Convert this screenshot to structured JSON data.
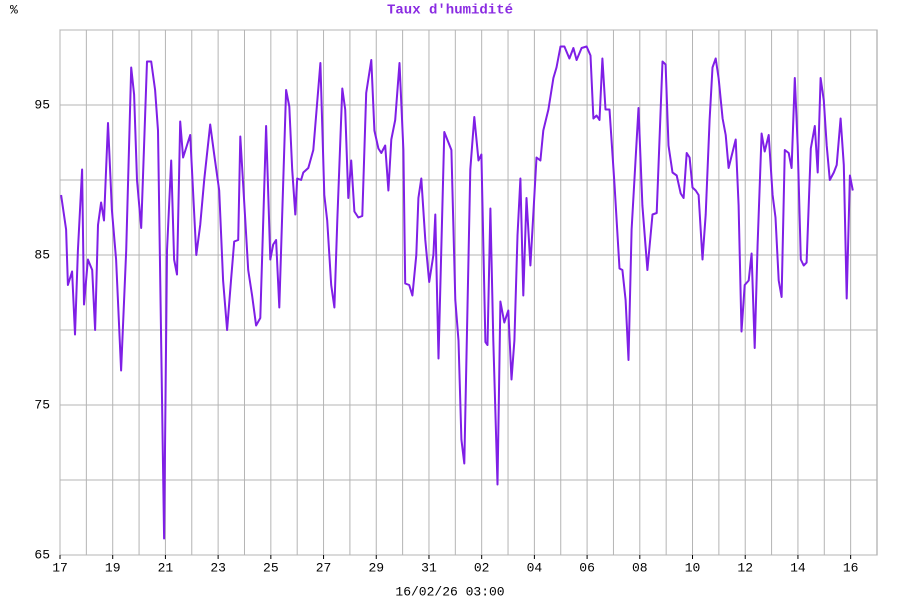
{
  "chart_data": {
    "type": "line",
    "title": "Taux d'humidité",
    "y_label": "%",
    "x_label": "16/02/26 03:00",
    "color": "#7f1fe6",
    "grid": true,
    "xlim": [
      0,
      31
    ],
    "ylim": [
      65,
      100
    ],
    "yticks": [
      65,
      75,
      85,
      95
    ],
    "yminor": [
      70,
      80,
      90,
      100
    ],
    "xticks": [
      {
        "value": 0,
        "label": "17"
      },
      {
        "value": 2,
        "label": "19"
      },
      {
        "value": 4,
        "label": "21"
      },
      {
        "value": 6,
        "label": "23"
      },
      {
        "value": 8,
        "label": "25"
      },
      {
        "value": 10,
        "label": "27"
      },
      {
        "value": 12,
        "label": "29"
      },
      {
        "value": 14,
        "label": "31"
      },
      {
        "value": 16,
        "label": "02"
      },
      {
        "value": 18,
        "label": "04"
      },
      {
        "value": 20,
        "label": "06"
      },
      {
        "value": 22,
        "label": "08"
      },
      {
        "value": 24,
        "label": "10"
      },
      {
        "value": 26,
        "label": "12"
      },
      {
        "value": 28,
        "label": "14"
      },
      {
        "value": 30,
        "label": "16"
      }
    ],
    "xminor": [
      1,
      3,
      5,
      7,
      9,
      11,
      13,
      15,
      17,
      19,
      21,
      23,
      25,
      27,
      29
    ],
    "x": [
      0.04,
      0.23,
      0.3,
      0.46,
      0.57,
      0.68,
      0.84,
      0.91,
      1.06,
      1.22,
      1.33,
      1.44,
      1.56,
      1.67,
      1.82,
      1.97,
      2.13,
      2.32,
      2.51,
      2.7,
      2.81,
      2.92,
      3.08,
      3.3,
      3.46,
      3.61,
      3.72,
      3.95,
      4.06,
      4.22,
      4.33,
      4.44,
      4.56,
      4.67,
      4.94,
      5.17,
      5.32,
      5.47,
      5.7,
      5.85,
      6.04,
      6.19,
      6.34,
      6.49,
      6.61,
      6.76,
      6.84,
      7.03,
      7.14,
      7.29,
      7.44,
      7.6,
      7.82,
      7.98,
      8.09,
      8.2,
      8.32,
      8.58,
      8.7,
      8.81,
      8.93,
      9.0,
      9.15,
      9.23,
      9.42,
      9.61,
      9.88,
      10.03,
      10.14,
      10.29,
      10.41,
      10.52,
      10.71,
      10.82,
      10.94,
      11.05,
      11.17,
      11.32,
      11.47,
      11.62,
      11.81,
      11.93,
      12.08,
      12.19,
      12.34,
      12.46,
      12.57,
      12.72,
      12.88,
      13.03,
      13.1,
      13.25,
      13.37,
      13.52,
      13.6,
      13.71,
      13.86,
      14.01,
      14.17,
      14.24,
      14.36,
      14.58,
      14.85,
      15.0,
      15.12,
      15.23,
      15.34,
      15.57,
      15.72,
      15.88,
      15.99,
      16.14,
      16.22,
      16.33,
      16.44,
      16.6,
      16.71,
      16.86,
      17.01,
      17.13,
      17.24,
      17.36,
      17.47,
      17.58,
      17.7,
      17.85,
      17.96,
      18.08,
      18.23,
      18.34,
      18.53,
      18.72,
      18.84,
      18.99,
      19.14,
      19.33,
      19.48,
      19.6,
      19.79,
      19.98,
      20.13,
      20.24,
      20.36,
      20.47,
      20.58,
      20.7,
      20.85,
      21.04,
      21.23,
      21.34,
      21.46,
      21.57,
      21.69,
      21.95,
      22.1,
      22.29,
      22.48,
      22.64,
      22.86,
      22.98,
      23.09,
      23.24,
      23.4,
      23.55,
      23.66,
      23.78,
      23.89,
      24.0,
      24.12,
      24.23,
      24.38,
      24.5,
      24.65,
      24.76,
      24.88,
      24.99,
      25.14,
      25.26,
      25.37,
      25.64,
      25.75,
      25.86,
      25.98,
      26.13,
      26.24,
      26.36,
      26.47,
      26.62,
      26.74,
      26.89,
      27.04,
      27.15,
      27.27,
      27.38,
      27.5,
      27.65,
      27.76,
      27.88,
      27.99,
      28.11,
      28.22,
      28.33,
      28.49,
      28.64,
      28.75,
      28.86,
      28.98,
      29.09,
      29.21,
      29.36,
      29.47,
      29.62,
      29.74,
      29.85,
      29.97,
      30.08
    ],
    "values": [
      89.0,
      86.7,
      83.0,
      83.9,
      79.7,
      85.3,
      90.7,
      81.7,
      84.7,
      84.0,
      80.0,
      87.0,
      88.5,
      87.3,
      93.8,
      88.0,
      84.7,
      77.3,
      85.3,
      97.5,
      95.7,
      90.0,
      86.8,
      97.9,
      97.9,
      96.0,
      93.3,
      66.1,
      85.3,
      91.3,
      84.7,
      83.7,
      93.9,
      91.5,
      93.0,
      85.0,
      87.0,
      90.0,
      93.7,
      91.7,
      89.3,
      83.3,
      80.0,
      83.3,
      85.9,
      86.0,
      92.9,
      87.3,
      84.0,
      82.3,
      80.3,
      80.8,
      93.6,
      84.7,
      85.7,
      86.0,
      81.5,
      96.0,
      94.9,
      90.7,
      87.7,
      90.1,
      90.0,
      90.5,
      90.8,
      92.0,
      97.8,
      89.0,
      87.3,
      83.0,
      81.5,
      87.3,
      96.1,
      94.7,
      88.8,
      91.3,
      87.9,
      87.5,
      87.6,
      95.8,
      98.0,
      93.3,
      92.1,
      91.8,
      92.3,
      89.3,
      92.7,
      94.0,
      97.8,
      92.0,
      83.1,
      83.0,
      82.3,
      85.0,
      88.8,
      90.1,
      86.0,
      83.2,
      85.0,
      87.7,
      78.1,
      93.2,
      92.0,
      82.0,
      79.3,
      72.7,
      71.1,
      90.7,
      94.2,
      91.3,
      91.7,
      79.2,
      79.0,
      88.1,
      79.3,
      69.7,
      81.9,
      80.5,
      81.3,
      76.7,
      79.3,
      86.3,
      90.1,
      82.3,
      88.8,
      84.3,
      87.7,
      91.5,
      91.3,
      93.3,
      94.7,
      96.8,
      97.5,
      98.9,
      98.9,
      98.1,
      98.8,
      98.0,
      98.8,
      98.9,
      98.3,
      94.1,
      94.3,
      94.0,
      98.1,
      94.7,
      94.7,
      89.7,
      84.1,
      84.0,
      82.0,
      78.0,
      86.7,
      94.8,
      88.3,
      84.0,
      87.7,
      87.8,
      97.9,
      97.7,
      92.3,
      90.5,
      90.3,
      89.1,
      88.8,
      91.8,
      91.5,
      89.5,
      89.3,
      89.0,
      84.7,
      87.7,
      94.0,
      97.5,
      98.1,
      96.8,
      94.1,
      93.0,
      90.8,
      92.7,
      88.3,
      79.9,
      83.0,
      83.3,
      85.1,
      78.8,
      85.7,
      93.1,
      91.9,
      93.0,
      89.0,
      87.5,
      83.3,
      82.2,
      92.0,
      91.8,
      90.8,
      96.8,
      92.3,
      84.7,
      84.3,
      84.5,
      92.1,
      93.6,
      90.5,
      96.8,
      95.3,
      92.3,
      90.0,
      90.5,
      91.0,
      94.1,
      91.0,
      82.1,
      90.3,
      89.3
    ]
  }
}
